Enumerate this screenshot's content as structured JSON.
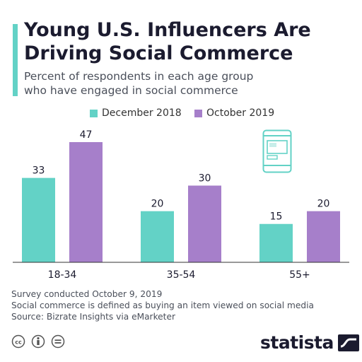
{
  "header": {
    "title_line1": "Young U.S. Influencers Are",
    "title_line2": "Driving Social Commerce",
    "subtitle_line1": "Percent of respondents in each age group",
    "subtitle_line2": "who have engaged in social commerce"
  },
  "chart_data": {
    "type": "bar",
    "categories": [
      "18-34",
      "35-54",
      "55+"
    ],
    "series": [
      {
        "name": "December 2018",
        "values": [
          33,
          20,
          15
        ],
        "color": "#63d2c6"
      },
      {
        "name": "October 2019",
        "values": [
          47,
          30,
          20
        ],
        "color": "#a67fca"
      }
    ],
    "ylim": [
      0,
      47
    ],
    "grid": false,
    "legend_position": "top-center",
    "data_labels": true
  },
  "footer": {
    "line1": "Survey conducted October 9, 2019",
    "line2": "Social commerce is defined as buying an item viewed on social media",
    "line3": "Source: Bizrate Insights via eMarketer"
  },
  "brand": {
    "name": "statista"
  },
  "icons": {
    "illustration": "smartphone-icon",
    "license": [
      "creative-commons-icon",
      "attribution-icon",
      "no-derivatives-icon"
    ],
    "logo": "statista-logo-icon"
  },
  "colors": {
    "accent": "#63d2c6",
    "series_2018": "#63d2c6",
    "series_2019": "#a67fca",
    "text": "#1b1b2f"
  }
}
